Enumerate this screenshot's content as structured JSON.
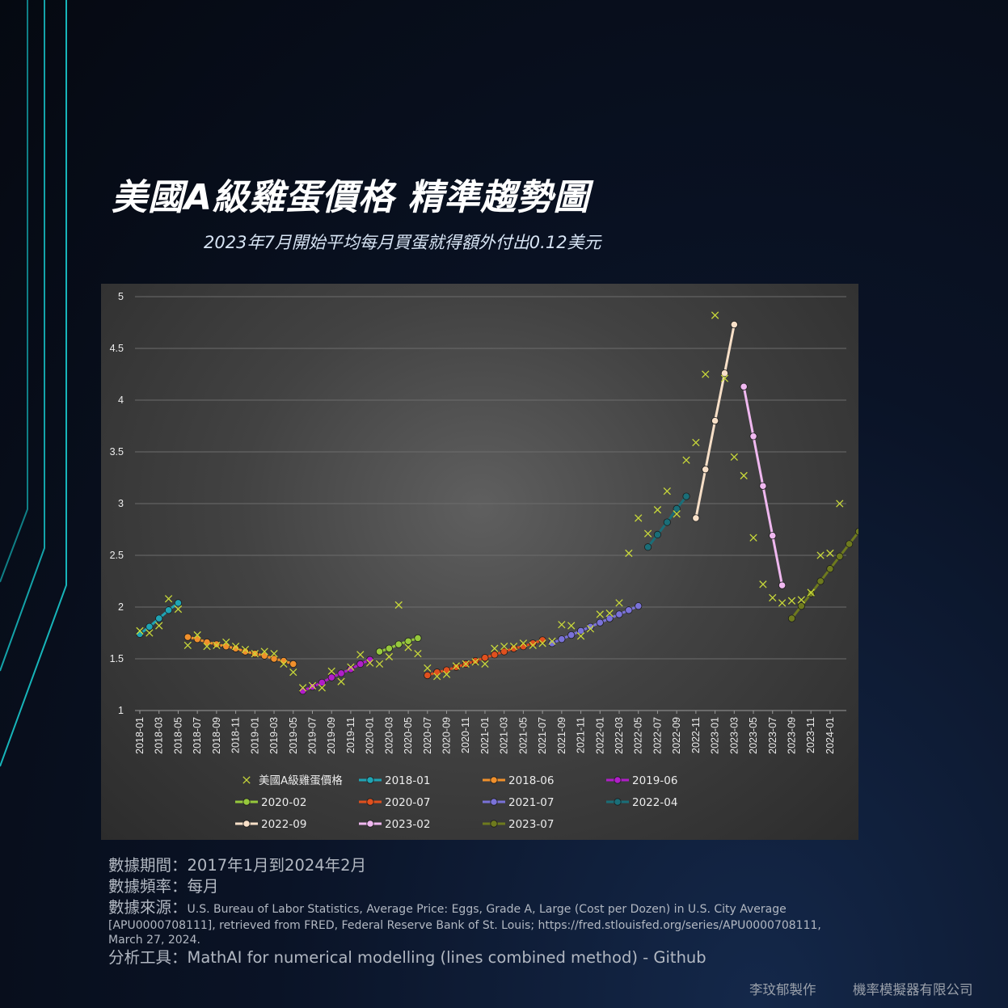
{
  "header": {
    "title": "美國A級雞蛋價格  精準趨勢圖",
    "subtitle": "2023年7月開始平均每月買蛋就得額外付出0.12美元"
  },
  "chart_data": {
    "type": "line",
    "ylim": [
      1,
      5
    ],
    "y_ticks": [
      "1",
      "1.5",
      "2",
      "2.5",
      "3",
      "3.5",
      "4",
      "4.5",
      "5"
    ],
    "grid": "horizontal",
    "legend_position": "bottom",
    "x_tick_labels": [
      "2018-01",
      "2018-03",
      "2018-05",
      "2018-07",
      "2018-09",
      "2018-11",
      "2019-01",
      "2019-03",
      "2019-05",
      "2019-07",
      "2019-09",
      "2019-11",
      "2020-01",
      "2020-03",
      "2020-05",
      "2020-07",
      "2020-09",
      "2020-11",
      "2021-01",
      "2021-03",
      "2021-05",
      "2021-07",
      "2021-09",
      "2021-11",
      "2022-01",
      "2022-03",
      "2022-05",
      "2022-07",
      "2022-09",
      "2022-11",
      "2023-01",
      "2023-03",
      "2023-05",
      "2023-07",
      "2023-09",
      "2023-11",
      "2024-01"
    ],
    "actual": {
      "name": "美國A級雞蛋價格",
      "color": "#c8d83a",
      "values": [
        1.77,
        1.75,
        1.82,
        2.08,
        1.98,
        1.63,
        1.73,
        1.62,
        1.63,
        1.66,
        1.62,
        1.59,
        1.55,
        1.57,
        1.55,
        1.45,
        1.37,
        1.22,
        1.24,
        1.22,
        1.38,
        1.28,
        1.42,
        1.54,
        1.46,
        1.45,
        1.52,
        2.02,
        1.61,
        1.55,
        1.41,
        1.33,
        1.35,
        1.43,
        1.45,
        1.47,
        1.45,
        1.6,
        1.62,
        1.62,
        1.65,
        1.63,
        1.65,
        1.67,
        1.83,
        1.82,
        1.72,
        1.79,
        1.93,
        1.94,
        2.04,
        2.52,
        2.86,
        2.71,
        2.94,
        3.12,
        2.9,
        3.42,
        3.59,
        4.25,
        4.82,
        4.21,
        3.45,
        3.27,
        2.67,
        2.22,
        2.09,
        2.04,
        2.06,
        2.07,
        2.14,
        2.5,
        2.52,
        3.0
      ]
    },
    "series": [
      {
        "name": "2018-01",
        "color": "#1fa4b4",
        "start_index": 0,
        "values": [
          1.74,
          1.81,
          1.89,
          1.97,
          2.04
        ]
      },
      {
        "name": "2018-06",
        "color": "#f0902c",
        "start_index": 5,
        "values": [
          1.71,
          1.69,
          1.66,
          1.64,
          1.62,
          1.6,
          1.57,
          1.55,
          1.53,
          1.5,
          1.48,
          1.45
        ]
      },
      {
        "name": "2019-06",
        "color": "#b01ec8",
        "start_index": 17,
        "values": [
          1.19,
          1.23,
          1.27,
          1.32,
          1.36,
          1.4,
          1.45,
          1.49
        ]
      },
      {
        "name": "2020-02",
        "color": "#96c83c",
        "start_index": 25,
        "values": [
          1.57,
          1.6,
          1.64,
          1.67,
          1.7
        ]
      },
      {
        "name": "2020-07",
        "color": "#e0501e",
        "start_index": 30,
        "values": [
          1.34,
          1.37,
          1.39,
          1.42,
          1.45,
          1.48,
          1.51,
          1.54,
          1.57,
          1.6,
          1.62,
          1.65,
          1.68
        ]
      },
      {
        "name": "2021-07",
        "color": "#7a72d8",
        "start_index": 43,
        "values": [
          1.65,
          1.69,
          1.73,
          1.77,
          1.81,
          1.85,
          1.89,
          1.93,
          1.97,
          2.01
        ]
      },
      {
        "name": "2022-04",
        "color": "#1a6e78",
        "start_index": 53,
        "values": [
          2.58,
          2.7,
          2.82,
          2.95,
          3.07
        ]
      },
      {
        "name": "2022-09",
        "color": "#f8e0c8",
        "start_index": 58,
        "values": [
          2.86,
          3.33,
          3.8,
          4.26,
          4.73
        ]
      },
      {
        "name": "2023-02",
        "color": "#f0b8f0",
        "start_index": 63,
        "values": [
          4.13,
          3.65,
          3.17,
          2.69,
          2.21
        ]
      },
      {
        "name": "2023-07",
        "color": "#6e7a1e",
        "start_index": 68,
        "values": [
          1.89,
          2.01,
          2.13,
          2.25,
          2.37,
          2.49,
          2.61,
          2.73
        ]
      }
    ]
  },
  "notes": {
    "period_label": "數據期間：",
    "period_value": "2017年1月到2024年2月",
    "frequency_label": "數據頻率：",
    "frequency_value": "每月",
    "source_label": "數據來源：",
    "source_value_1": "U.S. Bureau of Labor Statistics, Average Price: Eggs, Grade A, Large (Cost per Dozen) in U.S. City Average",
    "source_value_2": "[APU0000708111], retrieved from FRED, Federal Reserve Bank of St. Louis; https://fred.stlouisfed.org/series/APU0000708111,",
    "source_value_3": "March 27, 2024.",
    "tool_label": "分析工具：",
    "tool_value": "MathAI  for numerical modelling (lines combined method) - Github"
  },
  "footer": {
    "author": "李玟郁製作",
    "company": "機率模擬器有限公司"
  }
}
